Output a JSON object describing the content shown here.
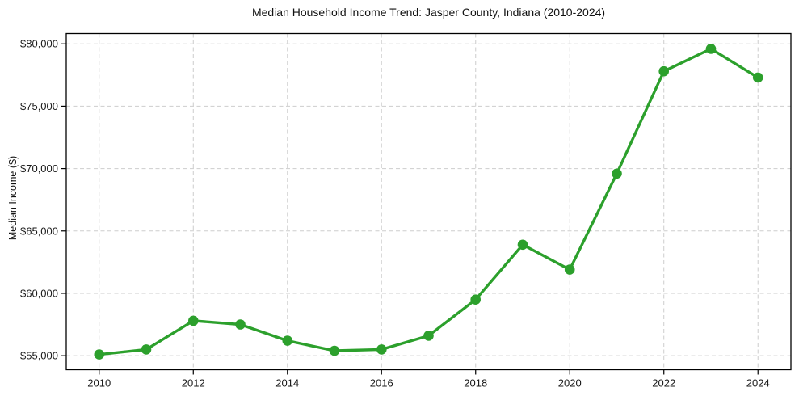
{
  "chart_data": {
    "type": "line",
    "title": "Median Household Income Trend: Jasper County, Indiana (2010-2024)",
    "xlabel": "",
    "ylabel": "Median Income ($)",
    "x": [
      2010,
      2011,
      2012,
      2013,
      2014,
      2015,
      2016,
      2017,
      2018,
      2019,
      2020,
      2021,
      2022,
      2023,
      2024
    ],
    "series": [
      {
        "name": "Median Household Income",
        "values": [
          55100,
          55500,
          57800,
          57500,
          56200,
          55400,
          55500,
          56600,
          59500,
          63900,
          61900,
          69600,
          77800,
          79600,
          77300
        ]
      }
    ],
    "x_ticks": [
      2010,
      2012,
      2014,
      2016,
      2018,
      2020,
      2022,
      2024
    ],
    "x_tick_labels": [
      "2010",
      "2012",
      "2014",
      "2016",
      "2018",
      "2020",
      "2022",
      "2024"
    ],
    "y_ticks": [
      55000,
      60000,
      65000,
      70000,
      75000,
      80000
    ],
    "y_tick_labels": [
      "$55,000",
      "$60,000",
      "$65,000",
      "$70,000",
      "$75,000",
      "$80,000"
    ],
    "xlim": [
      2009.3,
      2024.7
    ],
    "ylim": [
      53875,
      80825
    ],
    "grid": true,
    "grid_style": "dashed",
    "legend_position": "none",
    "colors": {
      "line": "#2ca02c",
      "marker": "#2ca02c",
      "grid": "#cdcdcd",
      "axis": "#000000",
      "tick_text": "#1a1a1a",
      "background": "#ffffff"
    }
  }
}
